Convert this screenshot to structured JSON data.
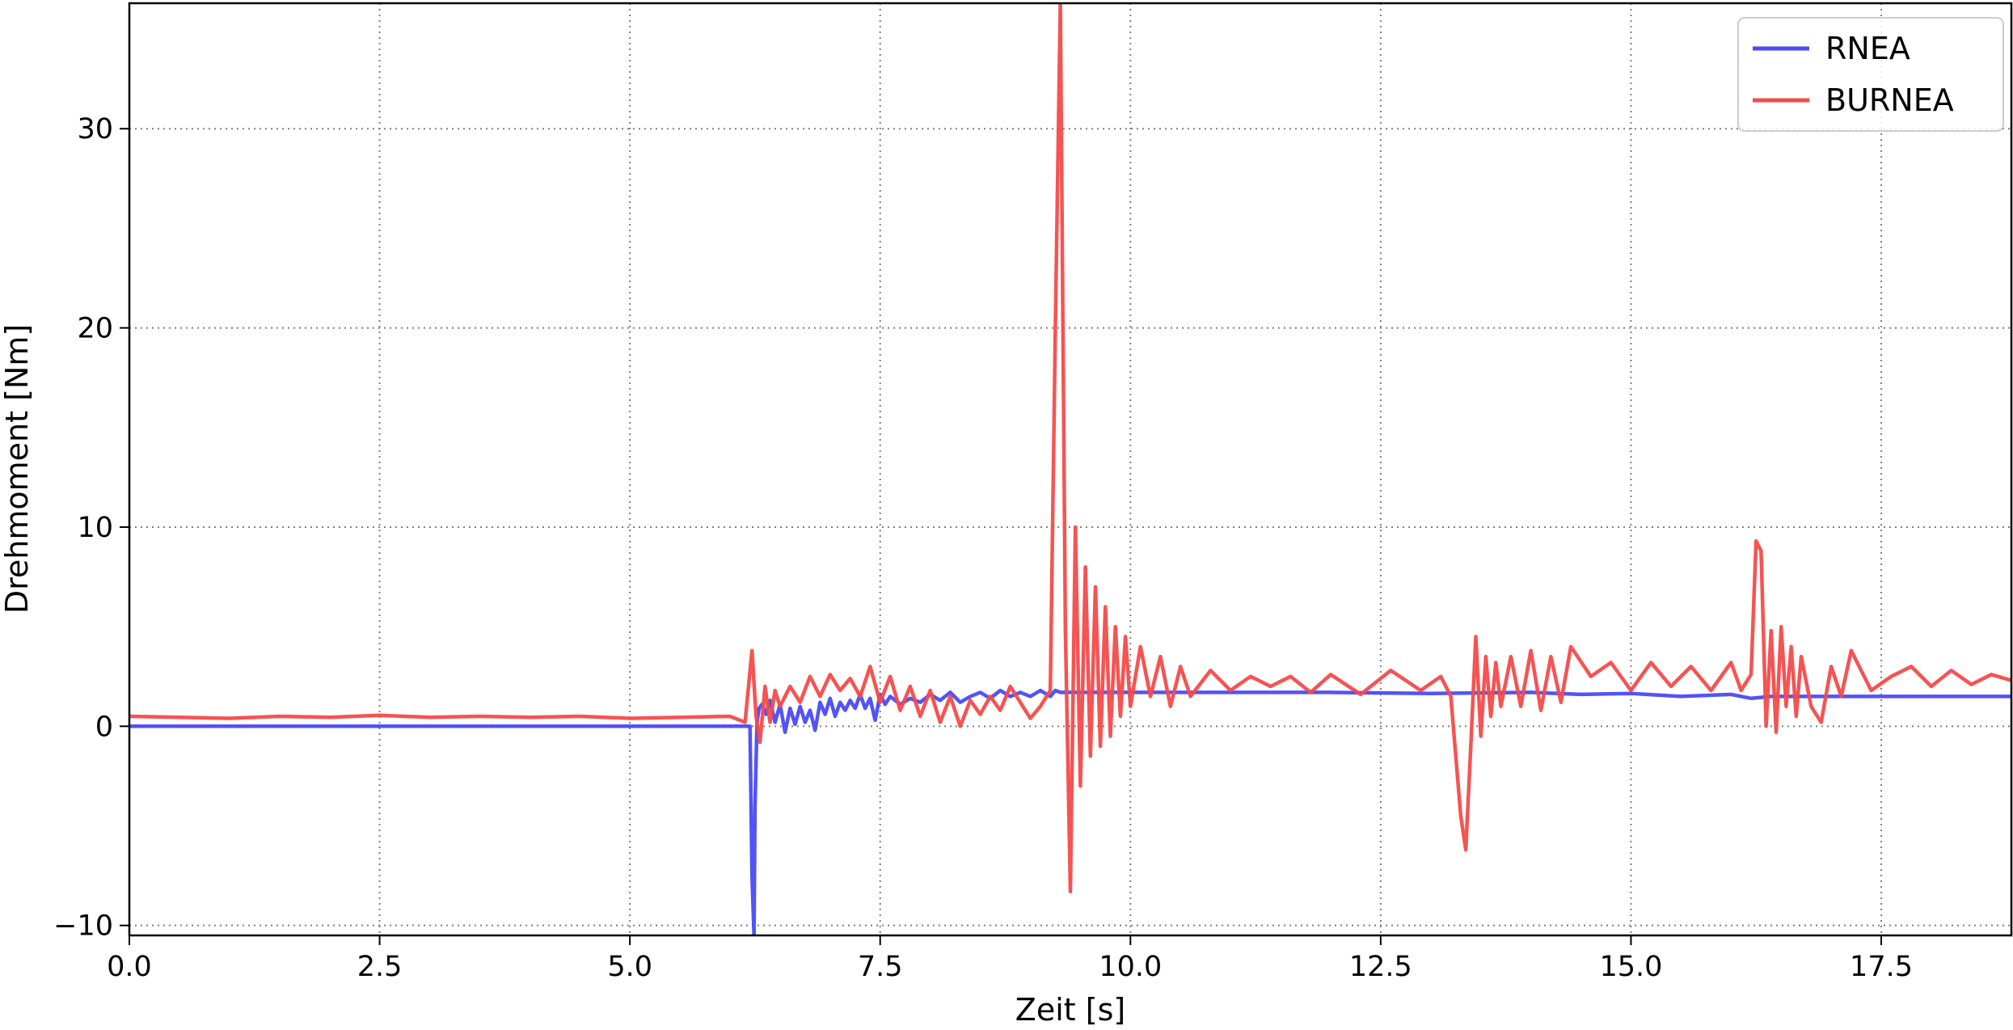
{
  "chart_data": {
    "type": "line",
    "title": "",
    "xlabel": "Zeit [s]",
    "ylabel": "Drehmoment [Nm]",
    "xlim": [
      0,
      18.8
    ],
    "ylim": [
      -10.5,
      36.3
    ],
    "xticks": [
      0.0,
      2.5,
      5.0,
      7.5,
      10.0,
      12.5,
      15.0,
      17.5
    ],
    "xtick_labels": [
      "0.0",
      "2.5",
      "5.0",
      "7.5",
      "10.0",
      "12.5",
      "15.0",
      "17.5"
    ],
    "yticks": [
      -10,
      0,
      10,
      20,
      30
    ],
    "ytick_labels": [
      "−10",
      "0",
      "10",
      "20",
      "30"
    ],
    "grid": true,
    "legend": "top-right",
    "series": [
      {
        "name": "RNEA",
        "color": "#4a4af5",
        "x": [
          0,
          6.2,
          6.22,
          6.24,
          6.25,
          6.27,
          6.29,
          6.32,
          6.36,
          6.4,
          6.45,
          6.5,
          6.55,
          6.6,
          6.65,
          6.7,
          6.75,
          6.8,
          6.85,
          6.9,
          6.95,
          7.0,
          7.05,
          7.1,
          7.15,
          7.2,
          7.25,
          7.3,
          7.35,
          7.4,
          7.45,
          7.5,
          7.55,
          7.6,
          7.7,
          7.8,
          7.9,
          8.0,
          8.1,
          8.2,
          8.3,
          8.4,
          8.5,
          8.6,
          8.7,
          8.8,
          8.9,
          9.0,
          9.1,
          9.2,
          9.25,
          9.3,
          9.5,
          10.0,
          11.0,
          12.0,
          13.0,
          14.0,
          14.5,
          15.0,
          15.5,
          16.0,
          16.2,
          16.4,
          17.0,
          18.0,
          18.8
        ],
        "y": [
          0,
          0,
          -7.5,
          -10.5,
          -4.0,
          0.2,
          0.9,
          1.1,
          0.6,
          1.3,
          0.2,
          1.1,
          -0.3,
          0.9,
          0.1,
          1.0,
          0.2,
          0.8,
          -0.2,
          1.2,
          0.6,
          1.4,
          0.5,
          1.2,
          0.8,
          1.3,
          0.9,
          1.6,
          0.9,
          1.4,
          0.3,
          1.6,
          1.1,
          1.5,
          1.1,
          1.4,
          1.2,
          1.6,
          1.3,
          1.7,
          1.2,
          1.5,
          1.7,
          1.4,
          1.8,
          1.5,
          1.7,
          1.5,
          1.8,
          1.5,
          1.8,
          1.7,
          1.7,
          1.7,
          1.7,
          1.7,
          1.65,
          1.7,
          1.6,
          1.65,
          1.5,
          1.6,
          1.4,
          1.5,
          1.5,
          1.5,
          1.5
        ]
      },
      {
        "name": "BURNEA",
        "color": "#f54a4a",
        "x": [
          0,
          0.5,
          1.0,
          1.5,
          2.0,
          2.5,
          3.0,
          3.5,
          4.0,
          4.5,
          5.0,
          5.5,
          6.0,
          6.15,
          6.22,
          6.26,
          6.3,
          6.35,
          6.4,
          6.45,
          6.5,
          6.6,
          6.7,
          6.8,
          6.9,
          7.0,
          7.1,
          7.2,
          7.3,
          7.4,
          7.5,
          7.6,
          7.7,
          7.8,
          7.9,
          8.0,
          8.1,
          8.2,
          8.3,
          8.4,
          8.5,
          8.6,
          8.7,
          8.8,
          8.9,
          9.0,
          9.1,
          9.2,
          9.25,
          9.3,
          9.35,
          9.4,
          9.45,
          9.5,
          9.55,
          9.6,
          9.65,
          9.7,
          9.75,
          9.8,
          9.85,
          9.9,
          9.95,
          10.0,
          10.1,
          10.2,
          10.3,
          10.4,
          10.5,
          10.6,
          10.8,
          11.0,
          11.2,
          11.4,
          11.6,
          11.8,
          12.0,
          12.3,
          12.6,
          12.9,
          13.1,
          13.2,
          13.3,
          13.35,
          13.4,
          13.45,
          13.5,
          13.55,
          13.6,
          13.65,
          13.7,
          13.8,
          13.9,
          14.0,
          14.1,
          14.2,
          14.3,
          14.4,
          14.6,
          14.8,
          15.0,
          15.2,
          15.4,
          15.6,
          15.8,
          16.0,
          16.1,
          16.2,
          16.25,
          16.3,
          16.35,
          16.4,
          16.45,
          16.5,
          16.55,
          16.6,
          16.65,
          16.7,
          16.8,
          16.9,
          17.0,
          17.1,
          17.2,
          17.4,
          17.6,
          17.8,
          18.0,
          18.2,
          18.4,
          18.6,
          18.8
        ],
        "y": [
          0.5,
          0.45,
          0.4,
          0.5,
          0.45,
          0.55,
          0.45,
          0.5,
          0.45,
          0.5,
          0.4,
          0.45,
          0.5,
          0.2,
          3.8,
          0.5,
          -0.8,
          2.0,
          0.2,
          1.8,
          1.0,
          2.0,
          1.2,
          2.5,
          1.5,
          2.6,
          1.8,
          2.4,
          1.5,
          3.0,
          1.2,
          2.5,
          0.8,
          2.0,
          0.5,
          1.8,
          0.2,
          1.5,
          0.0,
          1.3,
          0.6,
          1.5,
          0.8,
          2.0,
          1.2,
          0.4,
          1.0,
          1.8,
          20.0,
          36.3,
          5.0,
          -8.3,
          10.0,
          -3.0,
          8.0,
          -1.5,
          7.0,
          -1.0,
          6.0,
          -0.5,
          5.0,
          0.5,
          4.5,
          1.0,
          4.0,
          1.5,
          3.5,
          1.0,
          3.0,
          1.5,
          2.8,
          1.8,
          2.5,
          2.0,
          2.5,
          1.7,
          2.6,
          1.6,
          2.8,
          1.8,
          2.5,
          1.5,
          -4.5,
          -6.2,
          -1.0,
          4.5,
          -0.5,
          3.5,
          0.5,
          3.2,
          1.0,
          3.5,
          1.0,
          3.8,
          0.8,
          3.5,
          1.2,
          4.0,
          2.5,
          3.2,
          1.8,
          3.2,
          2.0,
          3.0,
          1.8,
          3.2,
          1.8,
          2.6,
          9.3,
          8.8,
          0.0,
          4.8,
          -0.3,
          5.0,
          1.0,
          4.0,
          0.5,
          3.5,
          1.0,
          0.2,
          3.0,
          1.5,
          3.8,
          1.8,
          2.5,
          3.0,
          2.0,
          2.8,
          2.1,
          2.6,
          2.3
        ]
      }
    ]
  }
}
